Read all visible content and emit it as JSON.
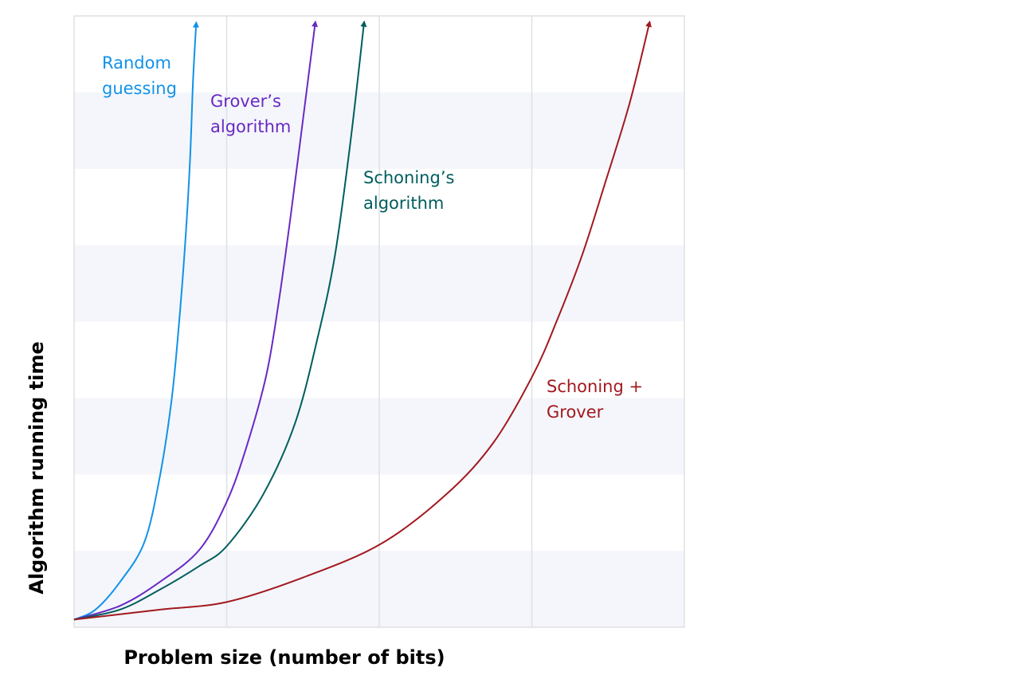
{
  "chart_data": {
    "type": "line",
    "xlabel": "Problem size (number of bits)",
    "ylabel": "Algorithm running time",
    "xlim": [
      0,
      4
    ],
    "ylim": [
      0,
      8
    ],
    "xgrid": [
      1,
      2,
      3
    ],
    "ygrid": [
      0,
      1,
      2,
      3,
      4,
      5,
      6,
      7,
      8
    ],
    "series": [
      {
        "name": "Random\nguessing",
        "color": "#1192e8",
        "x": [
          0,
          0.14,
          0.3,
          0.46,
          0.56,
          0.64,
          0.69,
          0.73,
          0.76,
          0.78,
          0.8
        ],
        "values": [
          0.1,
          0.23,
          0.59,
          1.11,
          1.95,
          2.99,
          4.03,
          5.08,
          6.12,
          7.17,
          7.89
        ]
      },
      {
        "name": "Grover’s\nalgorithm",
        "color": "#6929c4",
        "x": [
          0,
          0.3,
          0.56,
          0.82,
          1.0,
          1.13,
          1.26,
          1.34,
          1.42,
          1.5,
          1.58
        ],
        "values": [
          0.1,
          0.28,
          0.59,
          1.01,
          1.64,
          2.36,
          3.3,
          4.24,
          5.39,
          6.64,
          7.9
        ]
      },
      {
        "name": "Schoning’s\nalgorithm",
        "color": "#005d5d",
        "x": [
          0,
          0.3,
          0.56,
          0.82,
          1.0,
          1.24,
          1.45,
          1.6,
          1.71,
          1.81,
          1.9
        ],
        "values": [
          0.1,
          0.23,
          0.49,
          0.8,
          1.06,
          1.74,
          2.68,
          3.82,
          4.87,
          6.33,
          7.9
        ]
      },
      {
        "name": "Schoning +\nGrover",
        "color": "#a2191f",
        "x": [
          0,
          0.56,
          1.0,
          1.5,
          2.01,
          2.44,
          2.75,
          3.01,
          3.17,
          3.33,
          3.48,
          3.64,
          3.77
        ],
        "values": [
          0.1,
          0.23,
          0.33,
          0.65,
          1.09,
          1.74,
          2.42,
          3.31,
          4.04,
          4.87,
          5.81,
          6.85,
          7.9
        ]
      }
    ]
  }
}
